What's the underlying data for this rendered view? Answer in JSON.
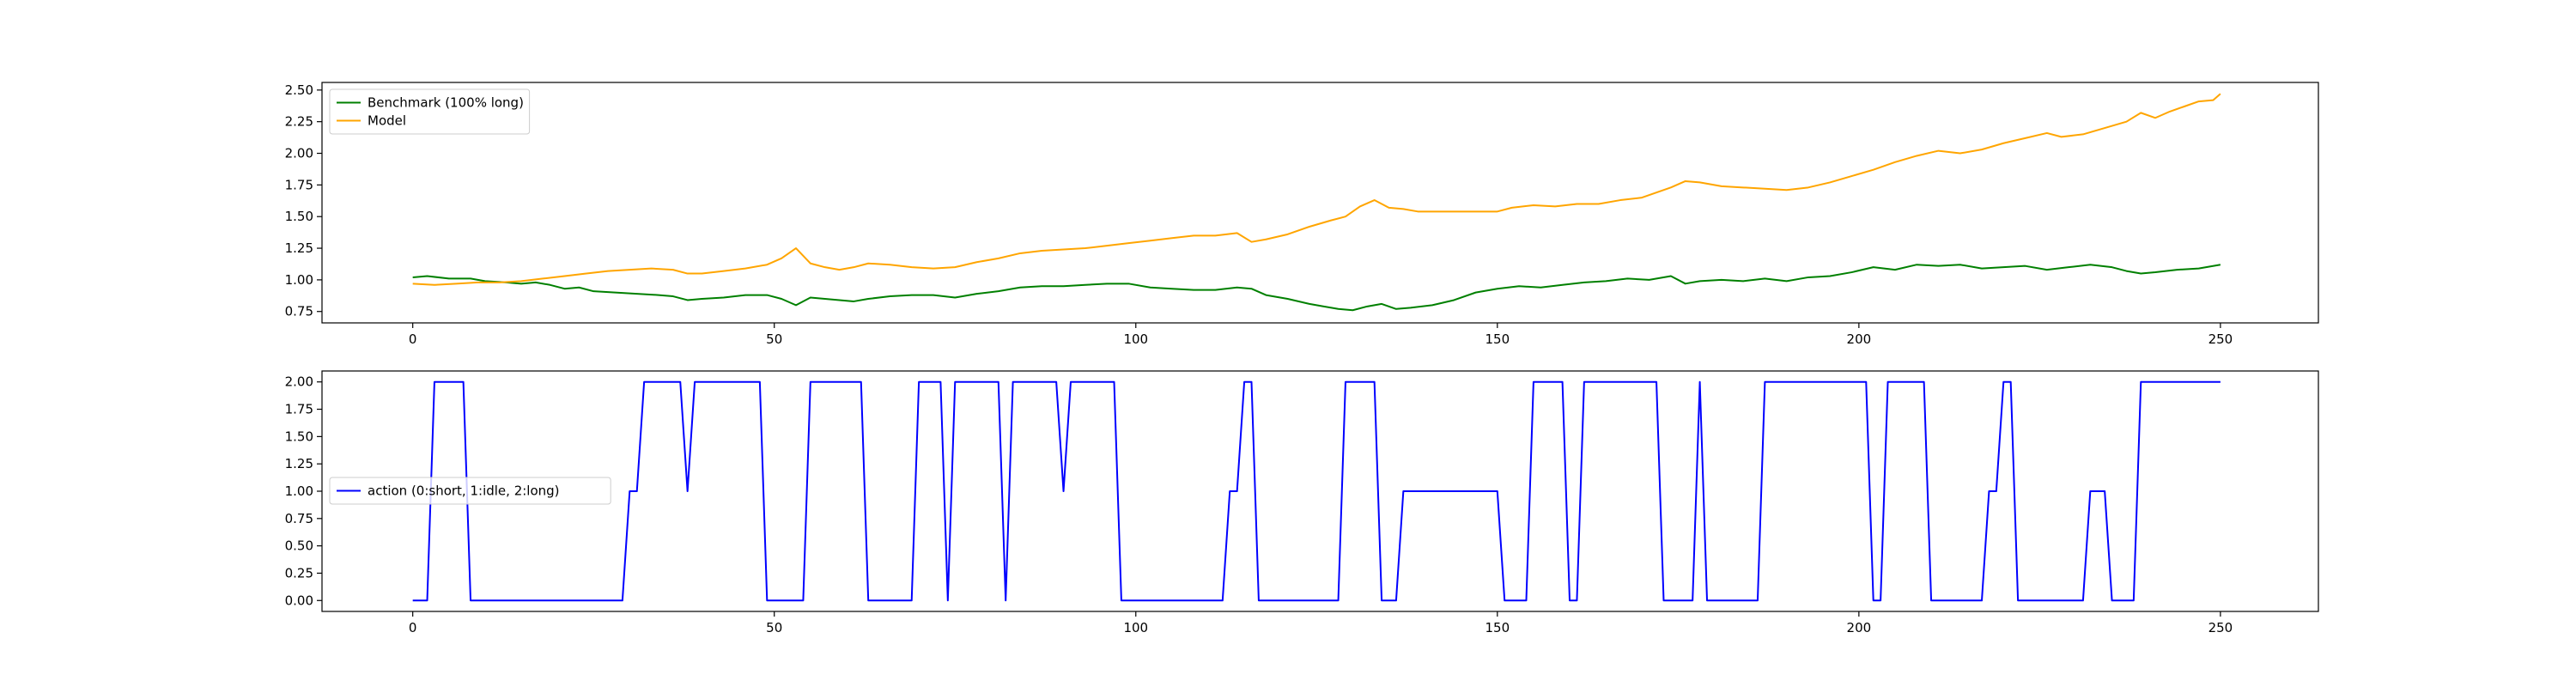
{
  "chart_data": [
    {
      "type": "line",
      "title": "",
      "xlabel": "",
      "ylabel": "",
      "xlim": [
        -12.55,
        263.55
      ],
      "ylim": [
        0.66,
        2.56
      ],
      "xticks": [
        0,
        50,
        100,
        150,
        200,
        250
      ],
      "xtick_labels": [
        "0",
        "50",
        "100",
        "150",
        "200",
        "250"
      ],
      "yticks": [
        0.75,
        1.0,
        1.25,
        1.5,
        1.75,
        2.0,
        2.25,
        2.5
      ],
      "ytick_labels": [
        "0.75",
        "1.00",
        "1.25",
        "1.50",
        "1.75",
        "2.00",
        "2.25",
        "2.50"
      ],
      "grid": false,
      "legend_position": "upper-left",
      "series": [
        {
          "name": "Benchmark (100% long)",
          "color": "#008000",
          "points": [
            [
              0,
              1.02
            ],
            [
              2,
              1.03
            ],
            [
              5,
              1.01
            ],
            [
              8,
              1.01
            ],
            [
              10,
              0.99
            ],
            [
              13,
              0.98
            ],
            [
              15,
              0.97
            ],
            [
              17,
              0.98
            ],
            [
              19,
              0.96
            ],
            [
              21,
              0.93
            ],
            [
              23,
              0.94
            ],
            [
              25,
              0.91
            ],
            [
              28,
              0.9
            ],
            [
              31,
              0.89
            ],
            [
              34,
              0.88
            ],
            [
              36,
              0.87
            ],
            [
              38,
              0.84
            ],
            [
              40,
              0.85
            ],
            [
              43,
              0.86
            ],
            [
              46,
              0.88
            ],
            [
              49,
              0.88
            ],
            [
              51,
              0.85
            ],
            [
              53,
              0.8
            ],
            [
              55,
              0.86
            ],
            [
              57,
              0.85
            ],
            [
              59,
              0.84
            ],
            [
              61,
              0.83
            ],
            [
              63,
              0.85
            ],
            [
              66,
              0.87
            ],
            [
              69,
              0.88
            ],
            [
              72,
              0.88
            ],
            [
              75,
              0.86
            ],
            [
              78,
              0.89
            ],
            [
              81,
              0.91
            ],
            [
              84,
              0.94
            ],
            [
              87,
              0.95
            ],
            [
              90,
              0.95
            ],
            [
              93,
              0.96
            ],
            [
              96,
              0.97
            ],
            [
              99,
              0.97
            ],
            [
              102,
              0.94
            ],
            [
              105,
              0.93
            ],
            [
              108,
              0.92
            ],
            [
              111,
              0.92
            ],
            [
              114,
              0.94
            ],
            [
              116,
              0.93
            ],
            [
              118,
              0.88
            ],
            [
              121,
              0.85
            ],
            [
              124,
              0.81
            ],
            [
              126,
              0.79
            ],
            [
              128,
              0.77
            ],
            [
              130,
              0.76
            ],
            [
              132,
              0.79
            ],
            [
              134,
              0.81
            ],
            [
              136,
              0.77
            ],
            [
              138,
              0.78
            ],
            [
              141,
              0.8
            ],
            [
              144,
              0.84
            ],
            [
              147,
              0.9
            ],
            [
              150,
              0.93
            ],
            [
              153,
              0.95
            ],
            [
              156,
              0.94
            ],
            [
              159,
              0.96
            ],
            [
              162,
              0.98
            ],
            [
              165,
              0.99
            ],
            [
              168,
              1.01
            ],
            [
              171,
              1.0
            ],
            [
              174,
              1.03
            ],
            [
              176,
              0.97
            ],
            [
              178,
              0.99
            ],
            [
              181,
              1.0
            ],
            [
              184,
              0.99
            ],
            [
              187,
              1.01
            ],
            [
              190,
              0.99
            ],
            [
              193,
              1.02
            ],
            [
              196,
              1.03
            ],
            [
              199,
              1.06
            ],
            [
              202,
              1.1
            ],
            [
              205,
              1.08
            ],
            [
              208,
              1.12
            ],
            [
              211,
              1.11
            ],
            [
              214,
              1.12
            ],
            [
              217,
              1.09
            ],
            [
              220,
              1.1
            ],
            [
              223,
              1.11
            ],
            [
              226,
              1.08
            ],
            [
              229,
              1.1
            ],
            [
              232,
              1.12
            ],
            [
              235,
              1.1
            ],
            [
              237,
              1.07
            ],
            [
              239,
              1.05
            ],
            [
              241,
              1.06
            ],
            [
              244,
              1.08
            ],
            [
              247,
              1.09
            ],
            [
              250,
              1.12
            ]
          ]
        },
        {
          "name": "Model",
          "color": "#FFA500",
          "points": [
            [
              0,
              0.97
            ],
            [
              3,
              0.96
            ],
            [
              6,
              0.97
            ],
            [
              9,
              0.98
            ],
            [
              12,
              0.98
            ],
            [
              15,
              0.99
            ],
            [
              18,
              1.01
            ],
            [
              21,
              1.03
            ],
            [
              24,
              1.05
            ],
            [
              27,
              1.07
            ],
            [
              30,
              1.08
            ],
            [
              33,
              1.09
            ],
            [
              36,
              1.08
            ],
            [
              38,
              1.05
            ],
            [
              40,
              1.05
            ],
            [
              43,
              1.07
            ],
            [
              46,
              1.09
            ],
            [
              49,
              1.12
            ],
            [
              51,
              1.17
            ],
            [
              53,
              1.25
            ],
            [
              55,
              1.13
            ],
            [
              57,
              1.1
            ],
            [
              59,
              1.08
            ],
            [
              61,
              1.1
            ],
            [
              63,
              1.13
            ],
            [
              66,
              1.12
            ],
            [
              69,
              1.1
            ],
            [
              72,
              1.09
            ],
            [
              75,
              1.1
            ],
            [
              78,
              1.14
            ],
            [
              81,
              1.17
            ],
            [
              84,
              1.21
            ],
            [
              87,
              1.23
            ],
            [
              90,
              1.24
            ],
            [
              93,
              1.25
            ],
            [
              96,
              1.27
            ],
            [
              99,
              1.29
            ],
            [
              102,
              1.31
            ],
            [
              105,
              1.33
            ],
            [
              108,
              1.35
            ],
            [
              111,
              1.35
            ],
            [
              114,
              1.37
            ],
            [
              116,
              1.3
            ],
            [
              118,
              1.32
            ],
            [
              121,
              1.36
            ],
            [
              124,
              1.42
            ],
            [
              127,
              1.47
            ],
            [
              129,
              1.5
            ],
            [
              131,
              1.58
            ],
            [
              133,
              1.63
            ],
            [
              135,
              1.57
            ],
            [
              137,
              1.56
            ],
            [
              139,
              1.54
            ],
            [
              145,
              1.54
            ],
            [
              150,
              1.54
            ],
            [
              152,
              1.57
            ],
            [
              155,
              1.59
            ],
            [
              158,
              1.58
            ],
            [
              161,
              1.6
            ],
            [
              164,
              1.6
            ],
            [
              167,
              1.63
            ],
            [
              170,
              1.65
            ],
            [
              172,
              1.69
            ],
            [
              174,
              1.73
            ],
            [
              176,
              1.78
            ],
            [
              178,
              1.77
            ],
            [
              181,
              1.74
            ],
            [
              184,
              1.73
            ],
            [
              187,
              1.72
            ],
            [
              190,
              1.71
            ],
            [
              193,
              1.73
            ],
            [
              196,
              1.77
            ],
            [
              199,
              1.82
            ],
            [
              202,
              1.87
            ],
            [
              205,
              1.93
            ],
            [
              208,
              1.98
            ],
            [
              211,
              2.02
            ],
            [
              214,
              2.0
            ],
            [
              217,
              2.03
            ],
            [
              220,
              2.08
            ],
            [
              223,
              2.12
            ],
            [
              226,
              2.16
            ],
            [
              228,
              2.13
            ],
            [
              231,
              2.15
            ],
            [
              234,
              2.2
            ],
            [
              237,
              2.25
            ],
            [
              239,
              2.32
            ],
            [
              241,
              2.28
            ],
            [
              243,
              2.33
            ],
            [
              245,
              2.37
            ],
            [
              247,
              2.41
            ],
            [
              249,
              2.42
            ],
            [
              250,
              2.47
            ]
          ]
        }
      ]
    },
    {
      "type": "line",
      "title": "",
      "xlabel": "",
      "ylabel": "",
      "xlim": [
        -12.55,
        263.55
      ],
      "ylim": [
        -0.1,
        2.1
      ],
      "xticks": [
        0,
        50,
        100,
        150,
        200,
        250
      ],
      "xtick_labels": [
        "0",
        "50",
        "100",
        "150",
        "200",
        "250"
      ],
      "yticks": [
        0.0,
        0.25,
        0.5,
        0.75,
        1.0,
        1.25,
        1.5,
        1.75,
        2.0
      ],
      "ytick_labels": [
        "0.00",
        "0.25",
        "0.50",
        "0.75",
        "1.00",
        "1.25",
        "1.50",
        "1.75",
        "2.00"
      ],
      "grid": false,
      "legend_position": "center-left",
      "series": [
        {
          "name": "action (0:short, 1:idle, 2:long)",
          "color": "#0000FF",
          "points": [
            [
              0,
              0
            ],
            [
              2,
              0
            ],
            [
              3,
              2
            ],
            [
              7,
              2
            ],
            [
              8,
              0
            ],
            [
              29,
              0
            ],
            [
              30,
              1
            ],
            [
              31,
              1
            ],
            [
              32,
              2
            ],
            [
              37,
              2
            ],
            [
              38,
              1
            ],
            [
              39,
              2
            ],
            [
              48,
              2
            ],
            [
              49,
              0
            ],
            [
              54,
              0
            ],
            [
              55,
              2
            ],
            [
              62,
              2
            ],
            [
              63,
              0
            ],
            [
              69,
              0
            ],
            [
              70,
              2
            ],
            [
              73,
              2
            ],
            [
              74,
              0
            ],
            [
              75,
              2
            ],
            [
              81,
              2
            ],
            [
              82,
              0
            ],
            [
              83,
              2
            ],
            [
              89,
              2
            ],
            [
              90,
              1
            ],
            [
              91,
              2
            ],
            [
              97,
              2
            ],
            [
              98,
              0
            ],
            [
              112,
              0
            ],
            [
              113,
              1
            ],
            [
              114,
              1
            ],
            [
              115,
              2
            ],
            [
              116,
              2
            ],
            [
              117,
              0
            ],
            [
              128,
              0
            ],
            [
              129,
              2
            ],
            [
              133,
              2
            ],
            [
              134,
              0
            ],
            [
              136,
              0
            ],
            [
              137,
              1
            ],
            [
              150,
              1
            ],
            [
              151,
              0
            ],
            [
              154,
              0
            ],
            [
              155,
              2
            ],
            [
              159,
              2
            ],
            [
              160,
              0
            ],
            [
              161,
              0
            ],
            [
              162,
              2
            ],
            [
              172,
              2
            ],
            [
              173,
              0
            ],
            [
              177,
              0
            ],
            [
              178,
              2
            ],
            [
              179,
              0
            ],
            [
              186,
              0
            ],
            [
              187,
              2
            ],
            [
              201,
              2
            ],
            [
              202,
              0
            ],
            [
              203,
              0
            ],
            [
              204,
              2
            ],
            [
              209,
              2
            ],
            [
              210,
              0
            ],
            [
              217,
              0
            ],
            [
              218,
              1
            ],
            [
              219,
              1
            ],
            [
              220,
              2
            ],
            [
              221,
              2
            ],
            [
              222,
              0
            ],
            [
              231,
              0
            ],
            [
              232,
              1
            ],
            [
              234,
              1
            ],
            [
              235,
              0
            ],
            [
              238,
              0
            ],
            [
              239,
              2
            ],
            [
              250,
              2
            ]
          ]
        }
      ]
    }
  ]
}
